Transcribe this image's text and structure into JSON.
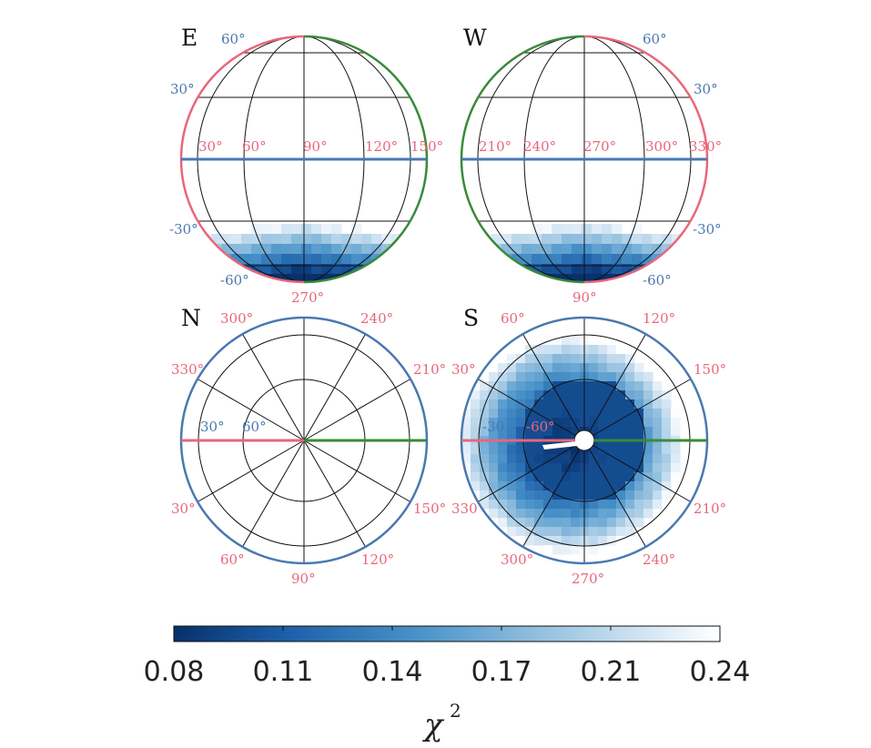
{
  "chart_data": [
    {
      "type": "heatmap",
      "panel": "E",
      "title": "E",
      "projection": "orthographic view of sphere, equatorial",
      "longitude_labels": [
        "30°",
        "60°",
        "90°",
        "120°",
        "150°"
      ],
      "bottom_longitude_label": "270°",
      "latitude_labels_left": [
        "30°",
        "-30°"
      ],
      "latitude_labels_right": [
        "60°",
        "-60°"
      ],
      "rim_colors": [
        "#e8677a",
        "#3a8a3a"
      ],
      "equator_color": "#4a78b0",
      "region": "low chi² band near latitude -60° to -90°, darkest near bottom",
      "chi2_min_region": 0.08
    },
    {
      "type": "heatmap",
      "panel": "W",
      "title": "W",
      "projection": "orthographic view of sphere, equatorial",
      "longitude_labels": [
        "210°",
        "240°",
        "270°",
        "300°",
        "330°"
      ],
      "bottom_longitude_label": "90°",
      "latitude_labels_left": [],
      "latitude_labels_right": [
        "60°",
        "30°",
        "-30°",
        "-60°"
      ],
      "rim_colors": [
        "#3a8a3a",
        "#e8677a"
      ],
      "equator_color": "#4a78b0",
      "region": "low chi² band near latitude -60° to -90°, darkest near bottom",
      "chi2_min_region": 0.08
    },
    {
      "type": "heatmap",
      "panel": "N",
      "title": "N",
      "projection": "polar view, north pole",
      "azimuth_labels": [
        "300°",
        "240°",
        "330°",
        "210°",
        "30°",
        "150°",
        "60°",
        "120°",
        "90°"
      ],
      "ring_labels": [
        "30°",
        "60°"
      ],
      "rim_color": "#4a78b0",
      "region": "no low chi² region shown"
    },
    {
      "type": "heatmap",
      "panel": "S",
      "title": "S",
      "projection": "polar view, south pole",
      "azimuth_labels": [
        "60°",
        "120°",
        "30°",
        "150°",
        "330",
        "210°",
        "300°",
        "240°",
        "270°"
      ],
      "ring_labels": [
        "-30",
        "-60°"
      ],
      "rim_color": "#4a78b0",
      "region": "broad low chi² region covering the pole, darkest near center",
      "chi2_min_region": 0.08
    }
  ],
  "colorbar": {
    "ticks": [
      "0.08",
      "0.11",
      "0.14",
      "0.17",
      "0.21",
      "0.24"
    ],
    "min": 0.08,
    "max": 0.24,
    "colors": [
      "#08306b",
      "#2171b5",
      "#6baed6",
      "#c6dbef",
      "#ffffff"
    ],
    "label": "χ",
    "label_sup": "2"
  }
}
